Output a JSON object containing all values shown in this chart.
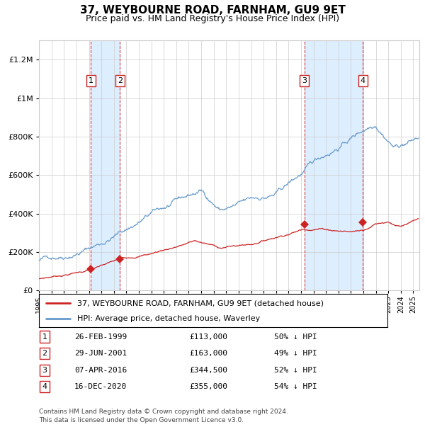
{
  "title": "37, WEYBOURNE ROAD, FARNHAM, GU9 9ET",
  "subtitle": "Price paid vs. HM Land Registry's House Price Index (HPI)",
  "transactions": [
    {
      "num": 1,
      "date": "26-FEB-1999",
      "date_num": 1999.15,
      "price": 113000,
      "pct": "50%",
      "dir": "↓"
    },
    {
      "num": 2,
      "date": "29-JUN-2001",
      "date_num": 2001.49,
      "price": 163000,
      "pct": "49%",
      "dir": "↓"
    },
    {
      "num": 3,
      "date": "07-APR-2016",
      "date_num": 2016.27,
      "price": 344500,
      "pct": "52%",
      "dir": "↓"
    },
    {
      "num": 4,
      "date": "16-DEC-2020",
      "date_num": 2020.96,
      "price": 355000,
      "pct": "54%",
      "dir": "↓"
    }
  ],
  "legend_line1": "37, WEYBOURNE ROAD, FARNHAM, GU9 9ET (detached house)",
  "legend_line2": "HPI: Average price, detached house, Waverley",
  "footnote1": "Contains HM Land Registry data © Crown copyright and database right 2024.",
  "footnote2": "This data is licensed under the Open Government Licence v3.0.",
  "hpi_color": "#6699cc",
  "price_color": "#cc2222",
  "highlight_color": "#ddeeff",
  "grid_color": "#cccccc",
  "background_color": "#ffffff",
  "xmin": 1995,
  "xmax": 2025.5,
  "ymin": 0,
  "ymax": 1300000
}
